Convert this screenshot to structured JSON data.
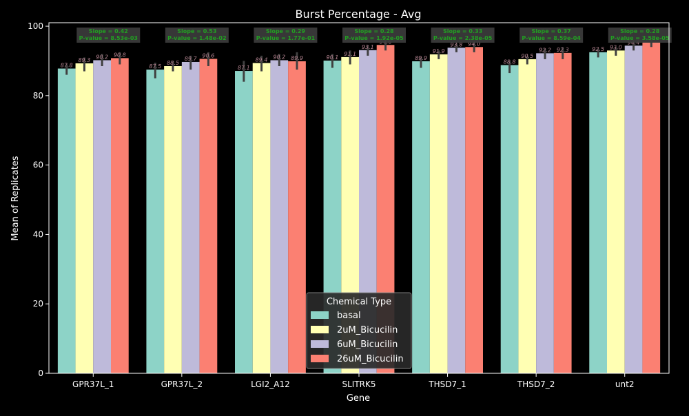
{
  "chart_data": {
    "type": "bar",
    "title": "Burst Percentage - Avg",
    "xlabel": "Gene",
    "ylabel": "Mean of Replicates",
    "ylim": [
      0,
      101
    ],
    "yticks": [
      0,
      20,
      40,
      60,
      80,
      100
    ],
    "grid": false,
    "legend_position": "bottom-center",
    "legend_title": "Chemical Type",
    "categories": [
      "GPR37L_1",
      "GPR37L_2",
      "LGI2_A12",
      "SLITRK5",
      "THSD7_1",
      "THSD7_2",
      "unt2"
    ],
    "series": [
      {
        "name": "basal",
        "color": "#8dd3c7",
        "values": [
          87.8,
          87.5,
          87.1,
          90.1,
          89.9,
          88.8,
          92.5
        ],
        "labels": [
          "87.8",
          "87.5",
          "87.1",
          "90.1",
          "89.9",
          "88.8",
          "92.5"
        ],
        "err": [
          [
            86.0,
            89.0
          ],
          [
            85.0,
            89.5
          ],
          [
            84.0,
            90.0
          ],
          [
            88.0,
            92.0
          ],
          [
            88.0,
            91.0
          ],
          [
            86.5,
            90.0
          ],
          [
            91.0,
            93.5
          ]
        ]
      },
      {
        "name": "2uM_Bicucilin",
        "color": "#ffffb3",
        "values": [
          89.3,
          88.5,
          89.4,
          91.1,
          91.9,
          90.5,
          93.0
        ],
        "labels": [
          "89.3",
          "88.5",
          "89.4",
          "91.1",
          "91.9",
          "90.5",
          "93.0"
        ],
        "err": [
          [
            87.0,
            91.0
          ],
          [
            87.0,
            90.0
          ],
          [
            87.0,
            91.5
          ],
          [
            89.0,
            93.0
          ],
          [
            90.5,
            93.0
          ],
          [
            89.0,
            91.5
          ],
          [
            91.5,
            94.0
          ]
        ]
      },
      {
        "name": "6uM_Bicucilin",
        "color": "#bebada",
        "values": [
          90.2,
          89.7,
          90.2,
          93.1,
          93.8,
          92.2,
          94.4
        ],
        "labels": [
          "90.2",
          "89.7",
          "90.2",
          "93.1",
          "93.8",
          "92.2",
          "94.4"
        ],
        "err": [
          [
            88.5,
            92.0
          ],
          [
            87.5,
            91.5
          ],
          [
            88.5,
            92.0
          ],
          [
            91.5,
            94.5
          ],
          [
            92.5,
            95.0
          ],
          [
            90.5,
            93.5
          ],
          [
            93.0,
            95.5
          ]
        ]
      },
      {
        "name": "26uM_Bicucilin",
        "color": "#fb8072",
        "values": [
          90.8,
          90.6,
          89.9,
          94.6,
          94.0,
          92.3,
          95.5
        ],
        "labels": [
          "90.8",
          "90.6",
          "89.9",
          "94.6",
          "94.0",
          "92.3",
          "95.5"
        ],
        "err": [
          [
            89.0,
            92.5
          ],
          [
            88.5,
            92.5
          ],
          [
            87.5,
            92.5
          ],
          [
            93.0,
            96.0
          ],
          [
            92.5,
            95.5
          ],
          [
            90.5,
            94.0
          ],
          [
            94.0,
            97.0
          ]
        ]
      }
    ],
    "annotations": [
      {
        "slope": "Slope = 0.42",
        "pvalue": "P-value = 8.53e-03"
      },
      {
        "slope": "Slope = 0.53",
        "pvalue": "P-value = 1.48e-02"
      },
      {
        "slope": "Slope = 0.29",
        "pvalue": "P-value = 1.77e-01"
      },
      {
        "slope": "Slope = 0.28",
        "pvalue": "P-value = 1.92e-05"
      },
      {
        "slope": "Slope = 0.33",
        "pvalue": "P-value = 2.38e-05"
      },
      {
        "slope": "Slope = 0.37",
        "pvalue": "P-value = 8.59e-04"
      },
      {
        "slope": "Slope = 0.28",
        "pvalue": "P-value = 3.58e-05"
      }
    ],
    "colors": {
      "background": "#000000",
      "axis": "#ffffff",
      "text": "#ffffff",
      "errorbar": "#404040",
      "annotation_box": "#3a3a3a",
      "annotation_text": "#22a022",
      "value_label": "#f4a3b8",
      "legend_bg": "#2a2a2a"
    }
  }
}
